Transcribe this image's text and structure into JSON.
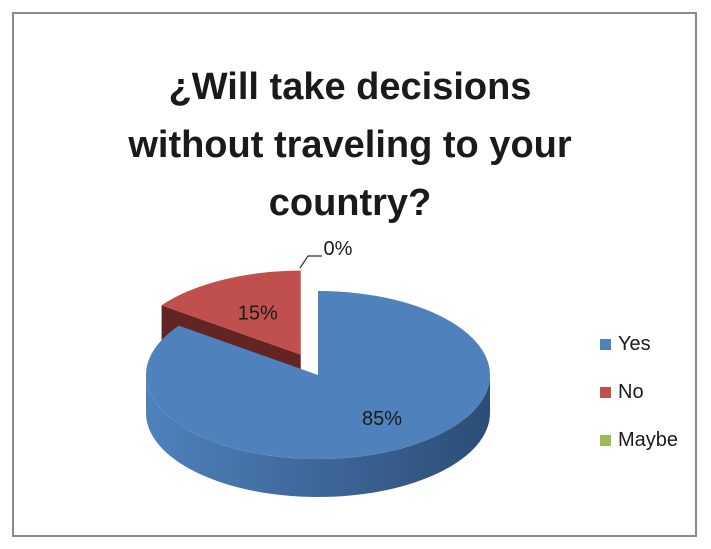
{
  "chart_data": {
    "type": "pie",
    "title_lines": [
      "¿Will take decisions",
      "without traveling to your",
      "country?"
    ],
    "slices": [
      {
        "label": "Yes",
        "value": 85,
        "data_label": "85%",
        "color": "#4f81bd",
        "side_color": "#2c4d75"
      },
      {
        "label": "No",
        "value": 15,
        "data_label": "15%",
        "color": "#c0504d",
        "side_color": "#632523"
      },
      {
        "label": "Maybe",
        "value": 0,
        "data_label": "0%",
        "color": "#9bbb59",
        "side_color": "#5f7530"
      }
    ],
    "legend_position": "right",
    "exploded": true,
    "three_d": true
  }
}
